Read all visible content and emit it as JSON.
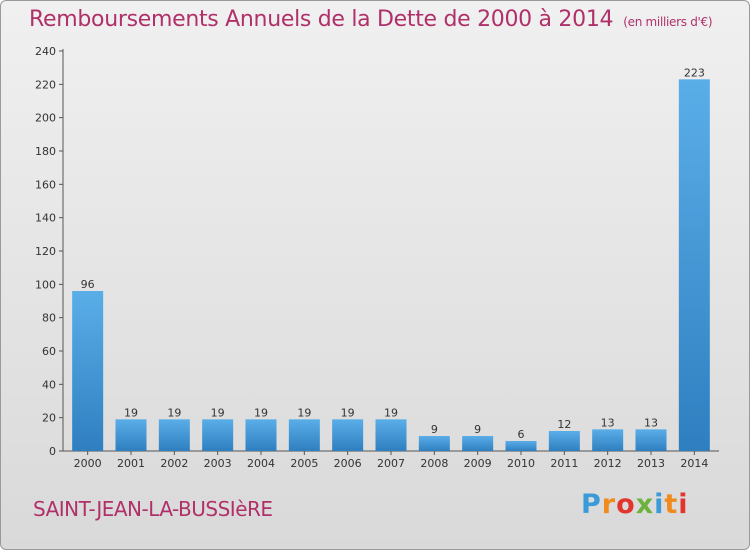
{
  "title": "Remboursements Annuels de la Dette de 2000 à 2014",
  "unit": "(en milliers d'€)",
  "place": "SAINT-JEAN-LA-BUSSIèRE",
  "logo": {
    "text": "Proxiti",
    "letter_colors": [
      "#3b9ad8",
      "#f08a1c",
      "#e2352d",
      "#6cb33e",
      "#3b9ad8",
      "#f08a1c",
      "#e2352d"
    ]
  },
  "colors": {
    "title": "#b0306a",
    "bar_light": "#5aaee8",
    "bar_dark": "#2f7fc0"
  },
  "chart_data": {
    "type": "bar",
    "categories": [
      "2000",
      "2001",
      "2002",
      "2003",
      "2004",
      "2005",
      "2006",
      "2007",
      "2008",
      "2009",
      "2010",
      "2011",
      "2012",
      "2013",
      "2014"
    ],
    "values": [
      96,
      19,
      19,
      19,
      19,
      19,
      19,
      19,
      9,
      9,
      6,
      12,
      13,
      13,
      223
    ],
    "title": "Remboursements Annuels de la Dette de 2000 à 2014",
    "xlabel": "",
    "ylabel": "",
    "ylim": [
      0,
      240
    ],
    "yticks": [
      0,
      20,
      40,
      60,
      80,
      100,
      120,
      140,
      160,
      180,
      200,
      220,
      240
    ],
    "grid": false,
    "data_labels": true
  }
}
